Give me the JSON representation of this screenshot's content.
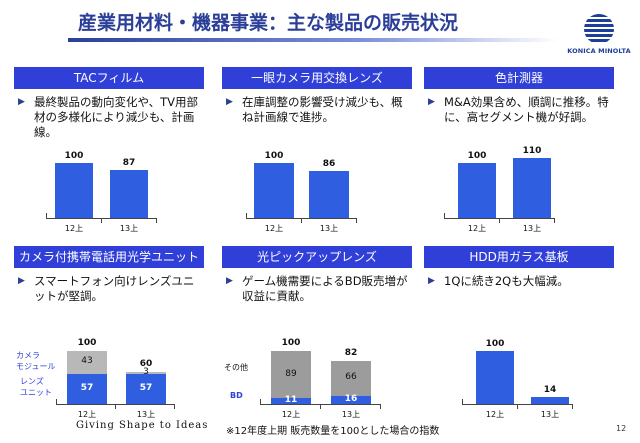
{
  "title": "産業用材料・機器事業：主な製品の販売状況",
  "logo": {
    "text": "KONICA MINOLTA"
  },
  "panels": {
    "tac": {
      "header": "TACフィルム",
      "bullet": "最終製品の動向変化や、TV用部材の多様化により減少も、計画線。",
      "chart": {
        "type": "bar",
        "categories": [
          "12上",
          "13上"
        ],
        "values": [
          100,
          87
        ]
      }
    },
    "slr": {
      "header": "一眼カメラ用交換レンズ",
      "bullet": "在庫調整の影響受け減少も、概ね計画線で進捗。",
      "chart": {
        "type": "bar",
        "categories": [
          "12上",
          "13上"
        ],
        "values": [
          100,
          86
        ]
      }
    },
    "color": {
      "header": "色計測器",
      "bullet": "M&A効果含め、順調に推移。特に、高セグメント機が好調。",
      "chart": {
        "type": "bar",
        "categories": [
          "12上",
          "13上"
        ],
        "values": [
          100,
          110
        ]
      }
    },
    "mobile": {
      "header": "カメラ付携帯電話用光学ユニット",
      "bullet": "スマートフォン向けレンズユニットが堅調。",
      "legend": [
        "カメラ",
        "モジュール",
        "レンズ",
        "ユニット"
      ],
      "chart": {
        "type": "bar",
        "stacked": true,
        "categories": [
          "12上",
          "13上"
        ],
        "totals": [
          100,
          60
        ],
        "series": [
          {
            "name": "カメラモジュール",
            "values": [
              43,
              3
            ]
          },
          {
            "name": "レンズユニット",
            "values": [
              57,
              57
            ]
          }
        ]
      }
    },
    "pickup": {
      "header": "光ピックアップレンズ",
      "bullet": "ゲーム機需要によるBD販売増が収益に貢献。",
      "chart": {
        "type": "bar",
        "stacked": true,
        "categories": [
          "12上",
          "13上"
        ],
        "totals": [
          100,
          82
        ],
        "series": [
          {
            "name": "その他",
            "values": [
              89,
              66
            ]
          },
          {
            "name": "BD",
            "values": [
              11,
              16
            ]
          }
        ]
      }
    },
    "hdd": {
      "header": "HDD用ガラス基板",
      "bullet": "1Qに続き2Qも大幅減。",
      "chart": {
        "type": "bar",
        "categories": [
          "12上",
          "13上"
        ],
        "values": [
          100,
          14
        ]
      }
    }
  },
  "chart_data": [
    {
      "type": "bar",
      "title": "TACフィルム",
      "categories": [
        "12上",
        "13上"
      ],
      "values": [
        100,
        87
      ]
    },
    {
      "type": "bar",
      "title": "一眼カメラ用交換レンズ",
      "categories": [
        "12上",
        "13上"
      ],
      "values": [
        100,
        86
      ]
    },
    {
      "type": "bar",
      "title": "色計測器",
      "categories": [
        "12上",
        "13上"
      ],
      "values": [
        100,
        110
      ]
    },
    {
      "type": "bar",
      "title": "カメラ付携帯電話用光学ユニット",
      "categories": [
        "12上",
        "13上"
      ],
      "series": [
        {
          "name": "カメラモジュール",
          "values": [
            43,
            3
          ]
        },
        {
          "name": "レンズユニット",
          "values": [
            57,
            57
          ]
        }
      ],
      "totals": [
        100,
        60
      ]
    },
    {
      "type": "bar",
      "title": "光ピックアップレンズ",
      "categories": [
        "12上",
        "13上"
      ],
      "series": [
        {
          "name": "その他",
          "values": [
            89,
            66
          ]
        },
        {
          "name": "BD",
          "values": [
            11,
            16
          ]
        }
      ],
      "totals": [
        100,
        82
      ]
    },
    {
      "type": "bar",
      "title": "HDD用ガラス基板",
      "categories": [
        "12上",
        "13上"
      ],
      "values": [
        100,
        14
      ]
    }
  ],
  "colors": {
    "accent": "#2f3fd8",
    "bar": "#2f5fe0",
    "title": "#2b3f99",
    "stack_light": "#b8b8b8",
    "stack_dark": "#9c9c9c"
  },
  "footer": {
    "tagline": "Giving Shape to Ideas",
    "note": "※12年度上期 販売数量を100とした場合の指数",
    "page": "12"
  }
}
